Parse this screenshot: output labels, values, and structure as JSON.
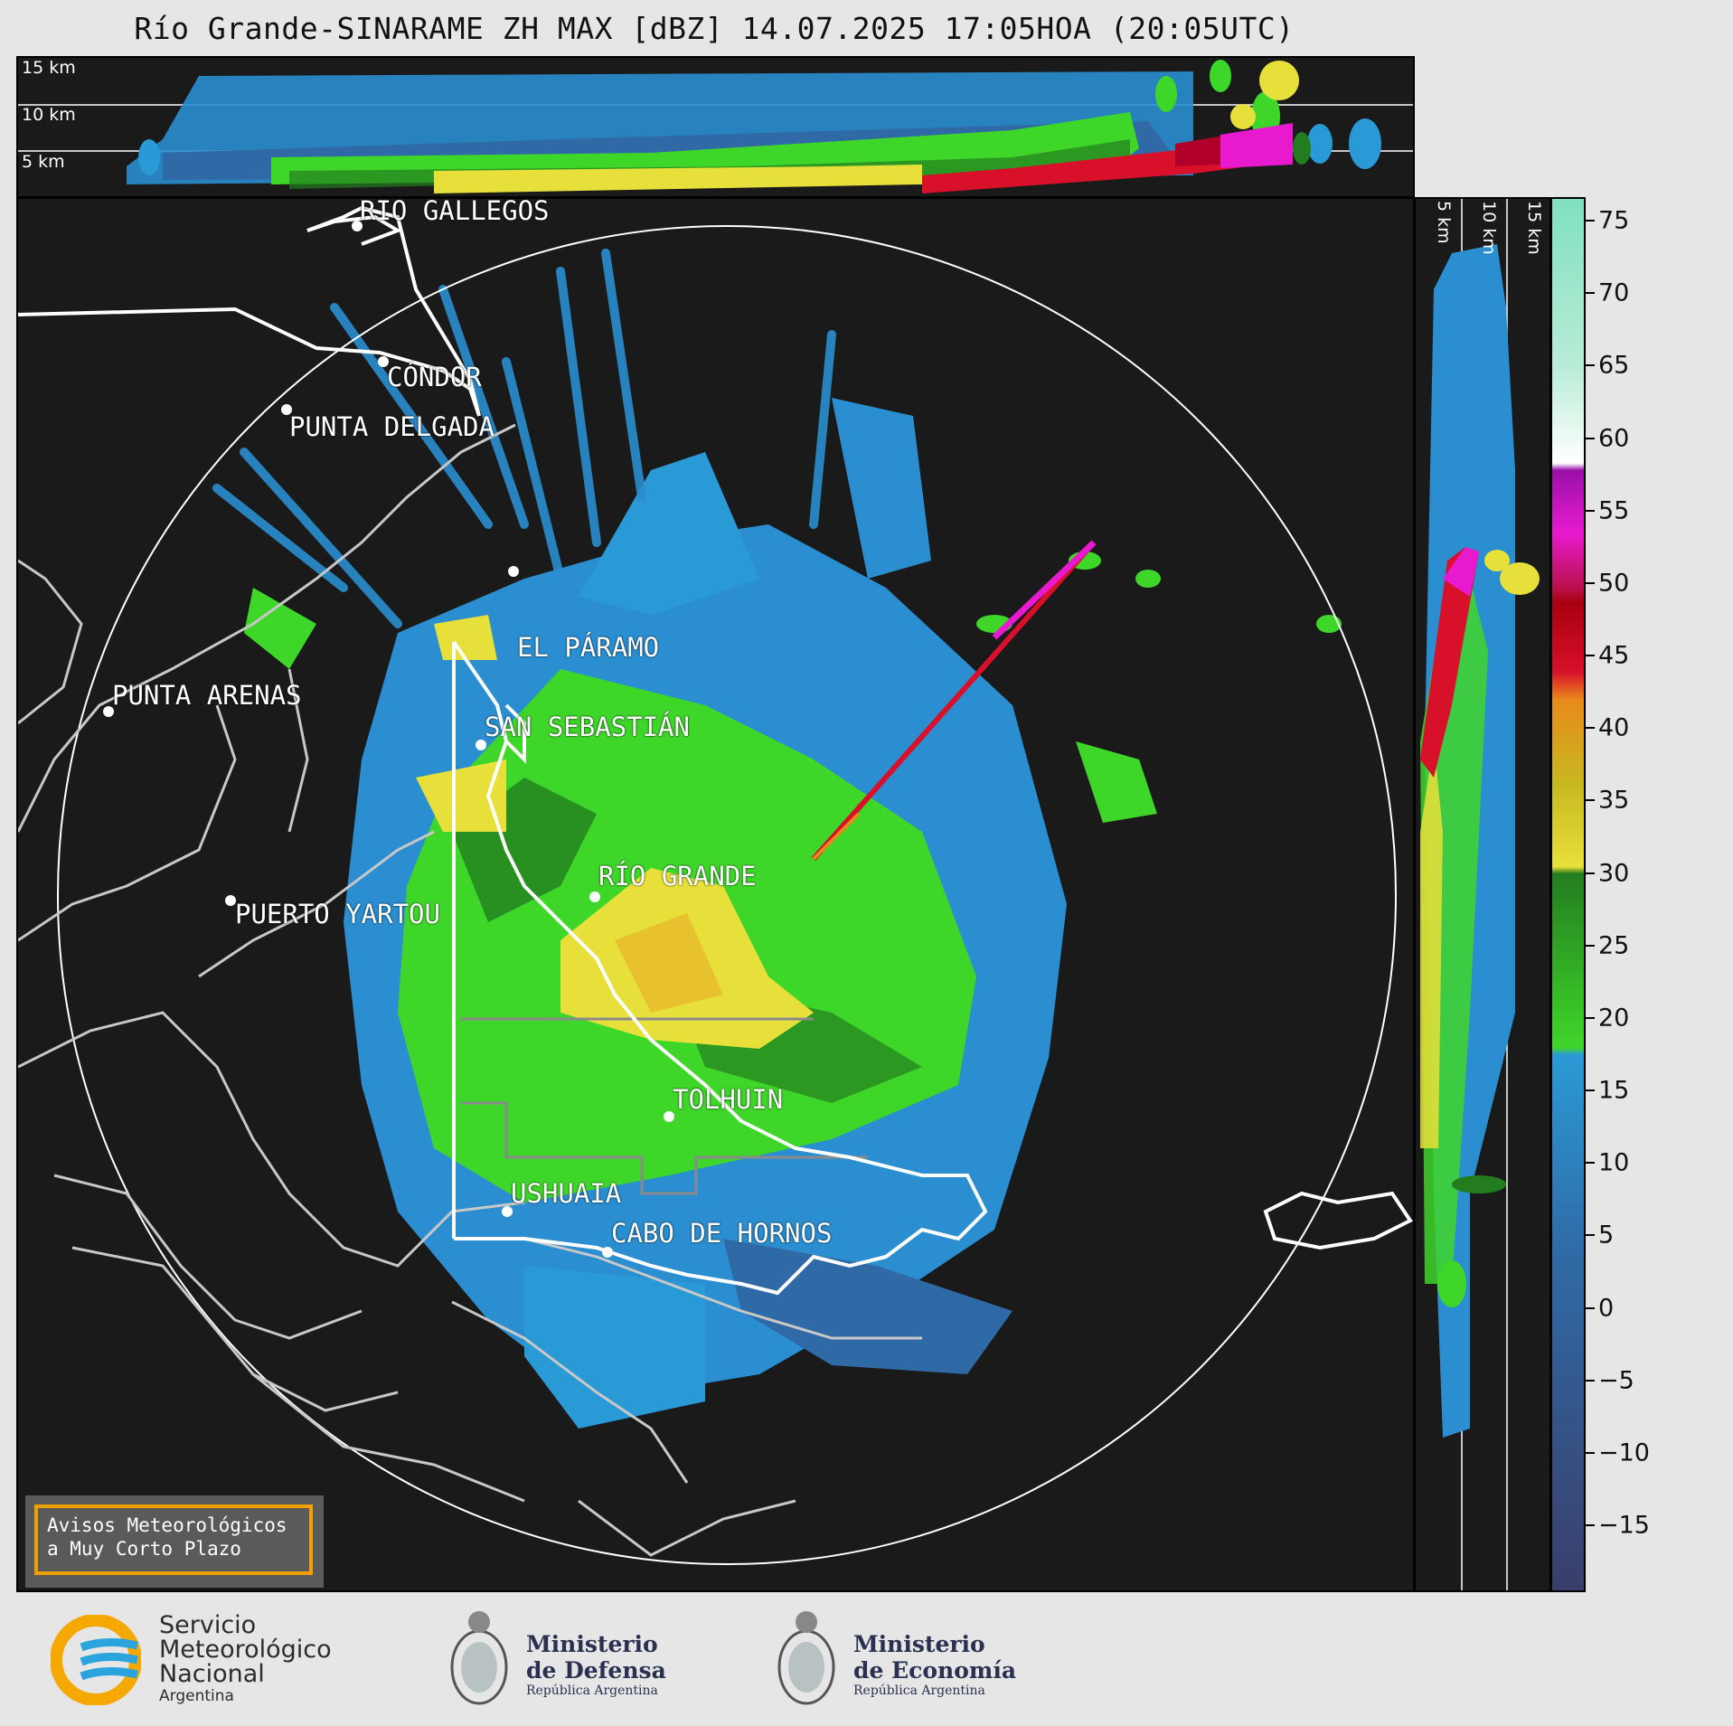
{
  "title": "Río Grande-SINARAME ZH MAX [dBZ] 14.07.2025 17:05HOA (20:05UTC)",
  "top_panel": {
    "height_labels": [
      "15 km",
      "10 km",
      "5 km"
    ]
  },
  "side_panel": {
    "height_labels": [
      "5 km",
      "10 km",
      "15 km"
    ]
  },
  "cities": [
    {
      "name": "RÍO GALLEGOS"
    },
    {
      "name": "CÓNDOR"
    },
    {
      "name": "PUNTA DELGADA"
    },
    {
      "name": "EL PÁRAMO"
    },
    {
      "name": "PUNTA ARENAS"
    },
    {
      "name": "SAN SEBASTIÁN"
    },
    {
      "name": "RÍO GRANDE"
    },
    {
      "name": "PUERTO YARTOU"
    },
    {
      "name": "TOLHUIN"
    },
    {
      "name": "USHUAIA"
    },
    {
      "name": "CABO DE HORNOS"
    }
  ],
  "colorbar": {
    "unit": "dBZ",
    "ticks": [
      "75",
      "70",
      "65",
      "60",
      "55",
      "50",
      "45",
      "40",
      "35",
      "30",
      "25",
      "20",
      "15",
      "10",
      "5",
      "0",
      "−5",
      "−10",
      "−15"
    ],
    "colors": {
      "very_low": "#3a3e6a",
      "low": "#2f6aa6",
      "blue": "#2a9ad6",
      "green": "#3fd62a",
      "dark_green": "#237d1f",
      "yellow": "#e8e03a",
      "orange": "#e88a1a",
      "red": "#d8102a",
      "magenta": "#e81ad0",
      "white": "#ffffff",
      "mint": "#80e0c0"
    }
  },
  "avisos": {
    "line1": "Avisos Meteorológicos",
    "line2": "a Muy Corto Plazo"
  },
  "logos": {
    "smn": {
      "line1": "Servicio",
      "line2": "Meteorológico",
      "line3": "Nacional",
      "line4": "Argentina"
    },
    "defensa": {
      "line1": "Ministerio",
      "line2": "de Defensa",
      "line3": "República Argentina"
    },
    "economia": {
      "line1": "Ministerio",
      "line2": "de Economía",
      "line3": "República Argentina"
    }
  }
}
